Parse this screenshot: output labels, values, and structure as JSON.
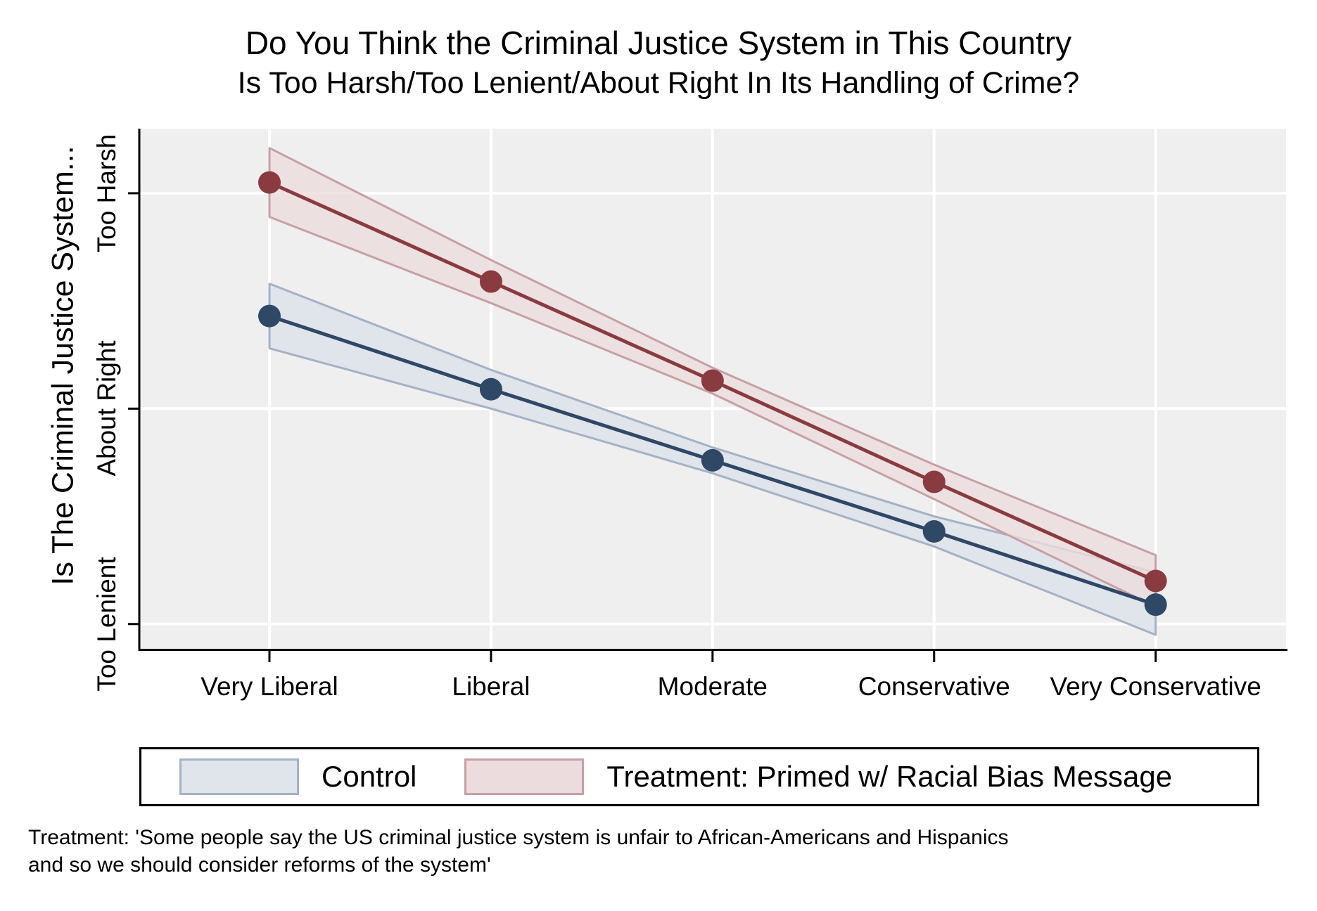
{
  "title": {
    "line1": "Do You Think the Criminal Justice System in This Country",
    "line2": "Is Too Harsh/Too Lenient/About Right In Its Handling of Crime?"
  },
  "y_axis_title": "Is The Criminal Justice System...",
  "note": {
    "line1": "Treatment: 'Some people say the US criminal justice system is unfair to African-Americans and Hispanics",
    "line2": "and so we should consider reforms of the system'"
  },
  "legend": {
    "items": [
      {
        "label": "Control",
        "swatch_fill": "#e0e4eb",
        "swatch_edge": "#a3b2c4"
      },
      {
        "label": "Treatment: Primed w/ Racial Bias Message",
        "swatch_fill": "#ecdcdd",
        "swatch_edge": "#c6a0a4"
      }
    ]
  },
  "chart_data": {
    "type": "line",
    "title": "Do You Think the Criminal Justice System in This Country Is Too Harsh/Too Lenient/About Right In Its Handling of Crime?",
    "xlabel": "",
    "ylabel": "Is The Criminal Justice System...",
    "categories": [
      "Very Liberal",
      "Liberal",
      "Moderate",
      "Conservative",
      "Very Conservative"
    ],
    "y_ticks": [
      {
        "value": 1,
        "label": "Too Lenient"
      },
      {
        "value": 2,
        "label": "About Right"
      },
      {
        "value": 3,
        "label": "Too Harsh"
      }
    ],
    "ylim": [
      0.885,
      3.3
    ],
    "grid": true,
    "plot_bg": "#efefef",
    "grid_color": "#ffffff",
    "legend_position": "bottom",
    "series": [
      {
        "name": "Control",
        "values": [
          2.43,
          2.09,
          1.76,
          1.43,
          1.09
        ],
        "ci_lower": [
          2.28,
          2.0,
          1.7,
          1.36,
          0.95
        ],
        "ci_upper": [
          2.58,
          2.18,
          1.82,
          1.5,
          1.24
        ],
        "line_color": "#2e4866",
        "band_fill": "#e0e4eb",
        "band_edge": "#a3b2c4",
        "band_opacity": 1
      },
      {
        "name": "Treatment: Primed w/ Racial Bias Message",
        "values": [
          3.05,
          2.59,
          2.13,
          1.66,
          1.2
        ],
        "ci_lower": [
          2.89,
          2.49,
          2.07,
          1.58,
          1.08
        ],
        "ci_upper": [
          3.21,
          2.69,
          2.19,
          1.74,
          1.32
        ],
        "line_color": "#8a3b40",
        "band_fill": "#ecdcdd",
        "band_edge": "#c6a0a4",
        "band_opacity": 0.8
      }
    ]
  }
}
